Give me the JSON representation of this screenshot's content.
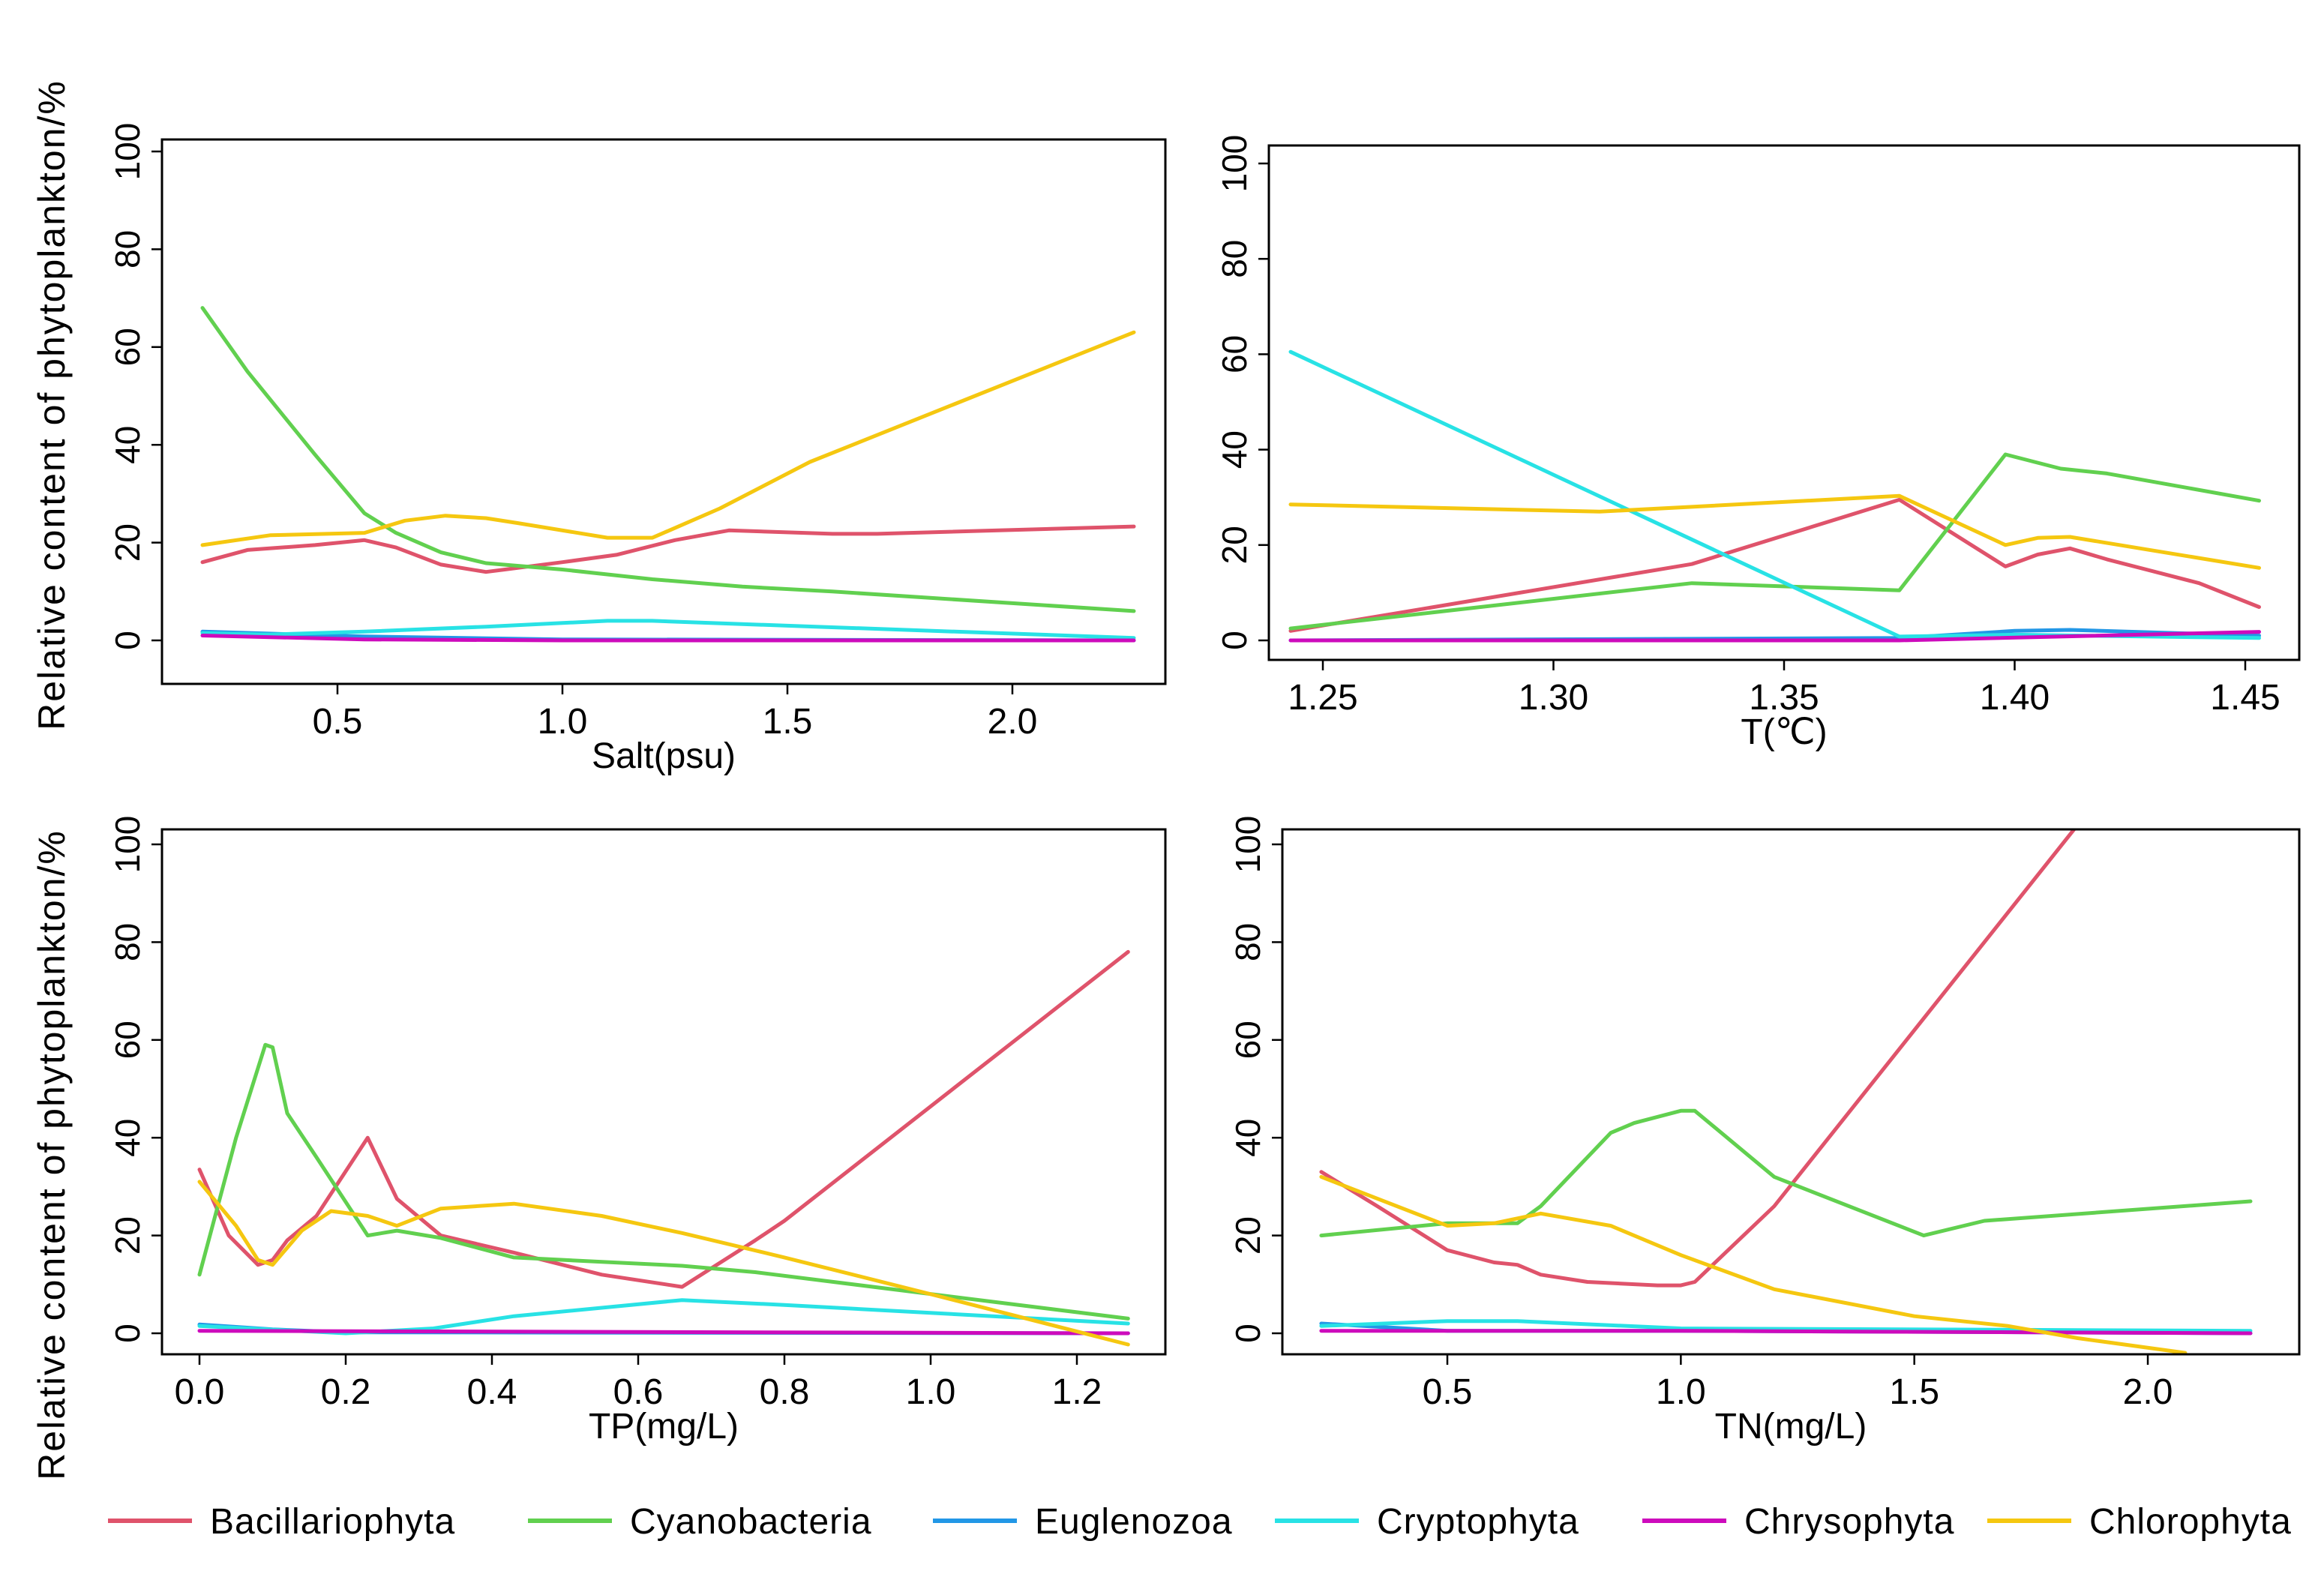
{
  "colors": {
    "Bacillariophyta": "#DF536B",
    "Cyanobacteria": "#61D04F",
    "Euglenozoa": "#2297E6",
    "Cryptophyta": "#28E2E5",
    "Chrysophyta": "#CD0BBC",
    "Chlorophyta": "#F5C710"
  },
  "ylabel": "Relative content of phytoplankton/%",
  "legend": [
    "Bacillariophyta",
    "Cyanobacteria",
    "Euglenozoa",
    "Cryptophyta",
    "Chrysophyta",
    "Chlorophyta"
  ],
  "chart_data": [
    {
      "type": "line",
      "xlabel": "Salt(psu)",
      "ylabel": "Relative content of phytoplankton/%",
      "xticks": [
        0.5,
        1.0,
        1.5,
        2.0
      ],
      "xtick_labels": [
        "0.5",
        "1.0",
        "1.5",
        "2.0"
      ],
      "yticks": [
        0,
        20,
        40,
        60,
        80,
        100
      ],
      "ytick_labels": [
        "0",
        "20",
        "40",
        "60",
        "80",
        "100"
      ],
      "ylim": [
        -3,
        105
      ],
      "series": [
        {
          "name": "Bacillariophyta",
          "points": [
            [
              0.2,
              16
            ],
            [
              0.3,
              18.5
            ],
            [
              0.45,
              19.5
            ],
            [
              0.56,
              20.5
            ],
            [
              0.63,
              19
            ],
            [
              0.73,
              15.5
            ],
            [
              0.83,
              14
            ],
            [
              1.0,
              16
            ],
            [
              1.12,
              17.5
            ],
            [
              1.25,
              20.5
            ],
            [
              1.37,
              22.5
            ],
            [
              1.6,
              21.8
            ],
            [
              1.7,
              21.8
            ],
            [
              2.27,
              23.3
            ]
          ]
        },
        {
          "name": "Cyanobacteria",
          "points": [
            [
              0.2,
              68
            ],
            [
              0.3,
              55
            ],
            [
              0.45,
              38
            ],
            [
              0.56,
              26
            ],
            [
              0.63,
              22
            ],
            [
              0.73,
              18
            ],
            [
              0.83,
              15.8
            ],
            [
              1.0,
              14.5
            ],
            [
              1.2,
              12.5
            ],
            [
              1.4,
              11
            ],
            [
              1.6,
              10
            ],
            [
              2.27,
              6
            ]
          ]
        },
        {
          "name": "Euglenozoa",
          "points": [
            [
              0.2,
              1.8
            ],
            [
              0.56,
              0.8
            ],
            [
              1.0,
              0.2
            ],
            [
              2.27,
              0
            ]
          ]
        },
        {
          "name": "Cryptophyta",
          "points": [
            [
              0.2,
              1.5
            ],
            [
              0.35,
              1.2
            ],
            [
              0.56,
              1.8
            ],
            [
              0.83,
              2.8
            ],
            [
              1.1,
              4
            ],
            [
              1.2,
              4
            ],
            [
              1.5,
              3
            ],
            [
              2.27,
              0.5
            ]
          ]
        },
        {
          "name": "Chrysophyta",
          "points": [
            [
              0.2,
              1
            ],
            [
              0.56,
              0.2
            ],
            [
              1.0,
              0
            ],
            [
              2.27,
              0
            ]
          ]
        },
        {
          "name": "Chlorophyta",
          "points": [
            [
              0.2,
              19.5
            ],
            [
              0.35,
              21.5
            ],
            [
              0.56,
              22
            ],
            [
              0.65,
              24.5
            ],
            [
              0.74,
              25.5
            ],
            [
              0.83,
              25
            ],
            [
              0.9,
              24
            ],
            [
              1.1,
              21
            ],
            [
              1.2,
              21
            ],
            [
              1.35,
              27
            ],
            [
              1.55,
              36.5
            ],
            [
              2.27,
              63
            ]
          ]
        }
      ]
    },
    {
      "type": "line",
      "xlabel": "T(℃)",
      "ylabel": "",
      "xticks": [
        1.25,
        1.3,
        1.35,
        1.4,
        1.45
      ],
      "xtick_labels": [
        "1.25",
        "1.30",
        "1.35",
        "1.40",
        "1.45"
      ],
      "yticks": [
        0,
        20,
        40,
        60,
        80,
        100
      ],
      "ytick_labels": [
        "0",
        "20",
        "40",
        "60",
        "80",
        "100"
      ],
      "ylim": [
        -3,
        105
      ],
      "series": [
        {
          "name": "Bacillariophyta",
          "points": [
            [
              1.243,
              2
            ],
            [
              1.33,
              16
            ],
            [
              1.375,
              29.5
            ],
            [
              1.398,
              15.5
            ],
            [
              1.405,
              18
            ],
            [
              1.412,
              19.3
            ],
            [
              1.42,
              17
            ],
            [
              1.44,
              12
            ],
            [
              1.453,
              7
            ]
          ]
        },
        {
          "name": "Cyanobacteria",
          "points": [
            [
              1.243,
              2.5
            ],
            [
              1.33,
              12
            ],
            [
              1.375,
              10.5
            ],
            [
              1.398,
              39
            ],
            [
              1.41,
              36
            ],
            [
              1.42,
              35
            ],
            [
              1.453,
              29.3
            ]
          ]
        },
        {
          "name": "Euglenozoa",
          "points": [
            [
              1.243,
              0
            ],
            [
              1.375,
              0.5
            ],
            [
              1.4,
              2
            ],
            [
              1.412,
              2.2
            ],
            [
              1.453,
              1
            ]
          ]
        },
        {
          "name": "Cryptophyta",
          "points": [
            [
              1.243,
              60.5
            ],
            [
              1.375,
              0.8
            ],
            [
              1.4,
              1.2
            ],
            [
              1.453,
              0.5
            ]
          ]
        },
        {
          "name": "Chrysophyta",
          "points": [
            [
              1.243,
              0
            ],
            [
              1.375,
              0
            ],
            [
              1.453,
              1.8
            ]
          ]
        },
        {
          "name": "Chlorophyta",
          "points": [
            [
              1.243,
              28.5
            ],
            [
              1.31,
              27
            ],
            [
              1.375,
              30.3
            ],
            [
              1.398,
              20
            ],
            [
              1.405,
              21.5
            ],
            [
              1.412,
              21.7
            ],
            [
              1.453,
              15.2
            ]
          ]
        }
      ]
    },
    {
      "type": "line",
      "xlabel": "TP(mg/L)",
      "ylabel": "Relative content of phytoplankton/%",
      "xticks": [
        0,
        0.2,
        0.4,
        0.6,
        0.8,
        1.0,
        1.2
      ],
      "xtick_labels": [
        "0.0",
        "0.2",
        "0.4",
        "0.6",
        "0.8",
        "1.0",
        "1.2"
      ],
      "yticks": [
        0,
        20,
        40,
        60,
        80,
        100
      ],
      "ytick_labels": [
        "0",
        "20",
        "40",
        "60",
        "80",
        "100"
      ],
      "ylim": [
        -3,
        105
      ],
      "series": [
        {
          "name": "Bacillariophyta",
          "points": [
            [
              0,
              33.5
            ],
            [
              0.04,
              20
            ],
            [
              0.08,
              14
            ],
            [
              0.1,
              15
            ],
            [
              0.12,
              19
            ],
            [
              0.16,
              24
            ],
            [
              0.23,
              40
            ],
            [
              0.27,
              27.5
            ],
            [
              0.33,
              20
            ],
            [
              0.43,
              16.5
            ],
            [
              0.55,
              12
            ],
            [
              0.66,
              9.5
            ],
            [
              0.76,
              19
            ],
            [
              0.8,
              23
            ],
            [
              1.27,
              78
            ]
          ]
        },
        {
          "name": "Cyanobacteria",
          "points": [
            [
              0,
              12
            ],
            [
              0.05,
              40
            ],
            [
              0.09,
              59
            ],
            [
              0.1,
              58.5
            ],
            [
              0.12,
              45
            ],
            [
              0.16,
              36
            ],
            [
              0.23,
              20
            ],
            [
              0.27,
              21
            ],
            [
              0.33,
              19.5
            ],
            [
              0.43,
              15.5
            ],
            [
              0.66,
              13.8
            ],
            [
              0.76,
              12.5
            ],
            [
              1.27,
              3
            ]
          ]
        },
        {
          "name": "Euglenozoa",
          "points": [
            [
              0,
              1.8
            ],
            [
              0.1,
              0.8
            ],
            [
              0.2,
              0.2
            ],
            [
              1.27,
              0
            ]
          ]
        },
        {
          "name": "Cryptophyta",
          "points": [
            [
              0,
              1.5
            ],
            [
              0.2,
              0
            ],
            [
              0.32,
              1
            ],
            [
              0.43,
              3.5
            ],
            [
              0.66,
              6.8
            ],
            [
              0.8,
              5.8
            ],
            [
              1.27,
              2
            ]
          ]
        },
        {
          "name": "Chrysophyta",
          "points": [
            [
              0,
              0.5
            ],
            [
              1.27,
              0
            ]
          ]
        },
        {
          "name": "Chlorophyta",
          "points": [
            [
              0,
              31
            ],
            [
              0.05,
              22
            ],
            [
              0.08,
              15
            ],
            [
              0.1,
              14
            ],
            [
              0.14,
              21
            ],
            [
              0.18,
              25
            ],
            [
              0.23,
              24
            ],
            [
              0.27,
              22
            ],
            [
              0.33,
              25.5
            ],
            [
              0.43,
              26.5
            ],
            [
              0.55,
              24
            ],
            [
              0.66,
              20.5
            ],
            [
              0.8,
              15.5
            ],
            [
              1.0,
              8
            ],
            [
              1.27,
              -2.3
            ]
          ]
        }
      ]
    },
    {
      "type": "line",
      "xlabel": "TN(mg/L)",
      "ylabel": "",
      "xticks": [
        0.5,
        1.0,
        1.5,
        2.0
      ],
      "xtick_labels": [
        "0.5",
        "1.0",
        "1.5",
        "2.0"
      ],
      "yticks": [
        0,
        20,
        40,
        60,
        80,
        100
      ],
      "ytick_labels": [
        "0",
        "20",
        "40",
        "60",
        "80",
        "100"
      ],
      "ylim": [
        -3,
        105
      ],
      "series": [
        {
          "name": "Bacillariophyta",
          "points": [
            [
              0.23,
              33
            ],
            [
              0.35,
              26
            ],
            [
              0.5,
              17
            ],
            [
              0.6,
              14.5
            ],
            [
              0.65,
              14
            ],
            [
              0.7,
              12
            ],
            [
              0.8,
              10.5
            ],
            [
              0.95,
              9.8
            ],
            [
              1.0,
              9.8
            ],
            [
              1.03,
              10.5
            ],
            [
              1.2,
              26
            ],
            [
              1.5,
              62
            ],
            [
              1.85,
              104
            ]
          ]
        },
        {
          "name": "Cyanobacteria",
          "points": [
            [
              0.23,
              20
            ],
            [
              0.5,
              22.5
            ],
            [
              0.65,
              22.5
            ],
            [
              0.7,
              26
            ],
            [
              0.85,
              41
            ],
            [
              0.9,
              43
            ],
            [
              1.0,
              45.5
            ],
            [
              1.03,
              45.5
            ],
            [
              1.2,
              32
            ],
            [
              1.52,
              20
            ],
            [
              1.65,
              23
            ],
            [
              2.22,
              27
            ]
          ]
        },
        {
          "name": "Euglenozoa",
          "points": [
            [
              0.23,
              2
            ],
            [
              0.5,
              0.5
            ],
            [
              1.0,
              0.5
            ],
            [
              2.22,
              0
            ]
          ]
        },
        {
          "name": "Cryptophyta",
          "points": [
            [
              0.23,
              1.5
            ],
            [
              0.5,
              2.5
            ],
            [
              0.65,
              2.5
            ],
            [
              1.0,
              1
            ],
            [
              2.22,
              0.5
            ]
          ]
        },
        {
          "name": "Chrysophyta",
          "points": [
            [
              0.23,
              0.5
            ],
            [
              1.0,
              0.5
            ],
            [
              2.22,
              0
            ]
          ]
        },
        {
          "name": "Chlorophyta",
          "points": [
            [
              0.23,
              32
            ],
            [
              0.5,
              22
            ],
            [
              0.6,
              22.5
            ],
            [
              0.7,
              24.5
            ],
            [
              0.85,
              22
            ],
            [
              1.0,
              16
            ],
            [
              1.2,
              9
            ],
            [
              1.5,
              3.5
            ],
            [
              1.7,
              1.5
            ],
            [
              1.85,
              -1
            ],
            [
              2.08,
              -4
            ]
          ]
        }
      ]
    }
  ]
}
